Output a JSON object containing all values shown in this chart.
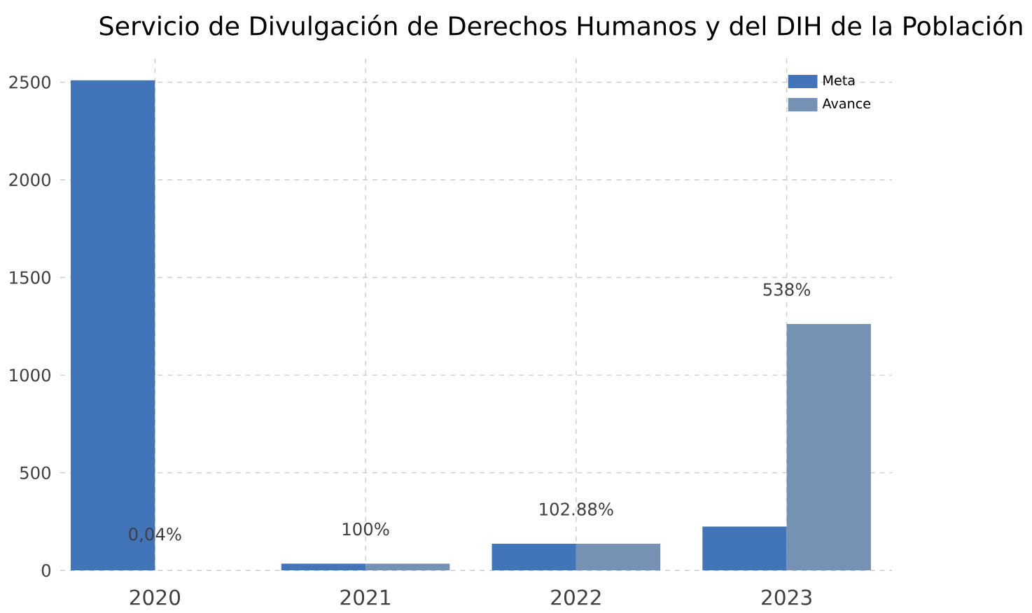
{
  "chart_data": {
    "type": "bar",
    "title": "Servicio de Divulgación de Derechos Humanos y del DIH de la Población",
    "categories": [
      "2020",
      "2021",
      "2022",
      "2023"
    ],
    "series": [
      {
        "name": "Meta",
        "color": "#4274ba",
        "values": [
          2510,
          35,
          137,
          225
        ]
      },
      {
        "name": "Avance",
        "color": "#7592b5",
        "values": [
          null,
          35,
          137,
          1262
        ]
      }
    ],
    "ylim": [
      0,
      2640
    ],
    "yticks": [
      0,
      500,
      1000,
      1500,
      2000,
      2500
    ],
    "grid": true,
    "legend": "top right",
    "annotations": [
      "0,04%",
      "100%",
      "102.88%",
      "538%"
    ]
  }
}
